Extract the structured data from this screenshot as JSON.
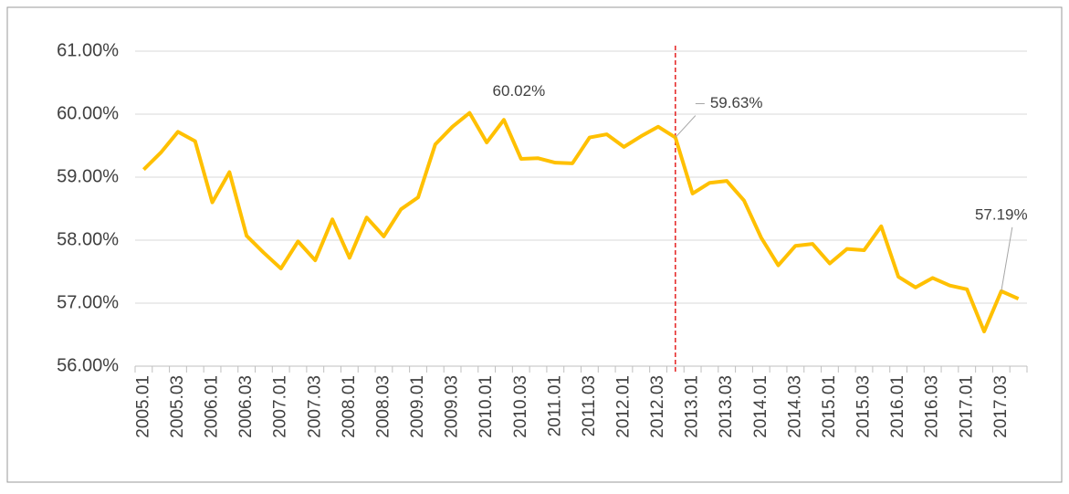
{
  "chart_data": {
    "type": "line",
    "categories": [
      "2005.01",
      null,
      "2005.03",
      null,
      "2006.01",
      null,
      "2006.03",
      null,
      "2007.01",
      null,
      "2007.03",
      null,
      "2008.01",
      null,
      "2008.03",
      null,
      "2009.01",
      null,
      "2009.03",
      null,
      "2010.01",
      null,
      "2010.03",
      null,
      "2011.01",
      null,
      "2011.03",
      null,
      "2012.01",
      null,
      "2012.03",
      null,
      "2013.01",
      null,
      "2013.03",
      null,
      "2014.01",
      null,
      "2014.03",
      null,
      "2015.01",
      null,
      "2015.03",
      null,
      "2016.01",
      null,
      "2016.03",
      null,
      "2017.01",
      null,
      "2017.03",
      null
    ],
    "values": [
      59.12,
      59.39,
      59.72,
      59.57,
      58.6,
      59.08,
      58.07,
      57.8,
      57.55,
      57.98,
      57.68,
      58.33,
      57.72,
      58.36,
      58.06,
      58.49,
      58.68,
      59.52,
      59.8,
      60.02,
      59.55,
      59.91,
      59.29,
      59.3,
      59.23,
      59.22,
      59.63,
      59.68,
      59.48,
      59.65,
      59.8,
      59.63,
      58.74,
      58.91,
      58.94,
      58.63,
      58.04,
      57.6,
      57.91,
      57.94,
      57.63,
      57.86,
      57.84,
      58.22,
      57.42,
      57.25,
      57.4,
      57.28,
      57.22,
      56.55,
      57.19,
      57.07
    ],
    "value_labels": [
      null,
      null,
      null,
      null,
      null,
      null,
      null,
      null,
      null,
      null,
      null,
      null,
      null,
      null,
      null,
      null,
      null,
      null,
      null,
      "60.02%",
      null,
      null,
      null,
      null,
      null,
      null,
      null,
      null,
      null,
      null,
      null,
      "59.63%",
      null,
      null,
      null,
      null,
      null,
      null,
      null,
      null,
      null,
      null,
      null,
      null,
      null,
      null,
      null,
      null,
      null,
      null,
      "57.19%",
      null
    ],
    "color": "#ffc000",
    "ylim": [
      56,
      61
    ],
    "yticks": [
      {
        "value": 56,
        "label": "56.00%"
      },
      {
        "value": 57,
        "label": "57.00%"
      },
      {
        "value": 58,
        "label": "58.00%"
      },
      {
        "value": 59,
        "label": "59.00%"
      },
      {
        "value": 60,
        "label": "60.00%"
      },
      {
        "value": 61,
        "label": "61.00%"
      }
    ],
    "grid": true,
    "reference_line": {
      "category_index": 31,
      "color": "#e00000",
      "style": "dashed"
    }
  }
}
